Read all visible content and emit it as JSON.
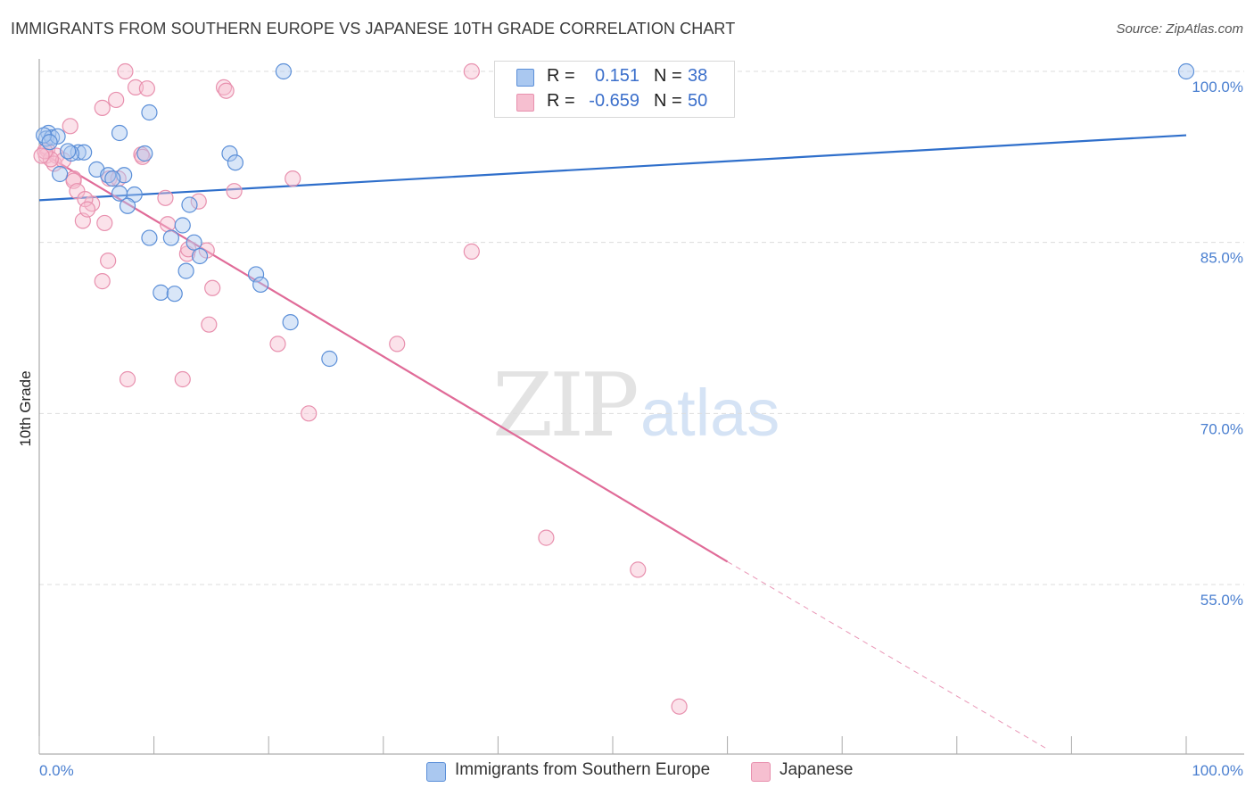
{
  "header": {
    "title": "IMMIGRANTS FROM SOUTHERN EUROPE VS JAPANESE 10TH GRADE CORRELATION CHART",
    "source": "Source: ZipAtlas.com"
  },
  "watermark": {
    "zip": "ZIP",
    "atlas": "atlas"
  },
  "legend": {
    "series1": {
      "r_label": "R =",
      "r_value": "0.151",
      "n_label": "N =",
      "n_value": "38"
    },
    "series2": {
      "r_label": "R =",
      "r_value": "-0.659",
      "n_label": "N =",
      "n_value": "50"
    }
  },
  "bottom_legend": {
    "series1": "Immigrants from Southern Europe",
    "series2": "Japanese"
  },
  "colors": {
    "blue_fill": "#aac8f0",
    "blue_stroke": "#5b8fd8",
    "blue_line": "#2f6fcb",
    "pink_fill": "#f6bfd0",
    "pink_stroke": "#e890ae",
    "pink_line": "#e06b98",
    "axis_label": "#4a7fd0",
    "grid": "#dddddd"
  },
  "chart_data": {
    "type": "scatter",
    "title": "IMMIGRANTS FROM SOUTHERN EUROPE VS JAPANESE 10TH GRADE CORRELATION CHART",
    "xlabel": "",
    "ylabel": "10th Grade",
    "xlim": [
      0,
      100
    ],
    "ylim": [
      40.5,
      101.5
    ],
    "x_tick_labels": [
      "0.0%",
      "100.0%"
    ],
    "y_ticks": [
      55,
      70,
      85,
      100
    ],
    "y_tick_labels": [
      "55.0%",
      "70.0%",
      "85.0%",
      "100.0%"
    ],
    "grid": true,
    "series": [
      {
        "name": "Immigrants from Southern Europe",
        "color": "#5b8fd8",
        "x": [
          21.3,
          100,
          0.8,
          0.6,
          1.1,
          1.6,
          3.4,
          3.9,
          2.8,
          9.6,
          7.0,
          9.2,
          16.6,
          17.1,
          5.0,
          6.0,
          7.4,
          6.4,
          7.0,
          8.3,
          7.7,
          13.1,
          12.5,
          9.6,
          11.5,
          13.5,
          14.0,
          12.8,
          10.6,
          11.8,
          18.9,
          19.3,
          21.9,
          25.3,
          0.4,
          0.9,
          2.5,
          1.8
        ],
        "y": [
          100,
          100,
          94.6,
          94.1,
          94.2,
          94.3,
          92.9,
          92.9,
          92.8,
          96.4,
          94.6,
          92.8,
          92.8,
          92.0,
          91.4,
          90.9,
          90.9,
          90.6,
          89.3,
          89.2,
          88.2,
          88.3,
          86.5,
          85.4,
          85.4,
          85.0,
          83.8,
          82.5,
          80.6,
          80.5,
          82.2,
          81.3,
          78.0,
          74.8,
          94.4,
          93.8,
          93.0,
          91.0
        ],
        "trendline": {
          "x": [
            0,
            100
          ],
          "y": [
            88.7,
            94.4
          ]
        }
      },
      {
        "name": "Japanese",
        "color": "#e890ae",
        "x": [
          7.5,
          37.7,
          16.1,
          16.3,
          8.4,
          9.4,
          6.7,
          5.5,
          2.7,
          0.7,
          0.6,
          1.5,
          1.3,
          2.1,
          3.0,
          8.9,
          9.0,
          6.1,
          6.9,
          11.0,
          13.9,
          17.0,
          22.1,
          3.0,
          3.3,
          4.6,
          4.0,
          3.8,
          4.2,
          5.7,
          11.2,
          12.9,
          14.6,
          13.0,
          15.1,
          6.0,
          5.5,
          20.8,
          23.5,
          7.7,
          12.5,
          37.7,
          44.2,
          52.2,
          55.8,
          31.2,
          14.8,
          1.0,
          0.5,
          0.2
        ],
        "y": [
          100,
          100,
          98.6,
          98.3,
          98.6,
          98.5,
          97.5,
          96.8,
          95.2,
          93.1,
          92.6,
          92.6,
          91.9,
          92.2,
          90.6,
          92.7,
          92.5,
          90.6,
          90.6,
          88.9,
          88.6,
          89.5,
          90.6,
          90.4,
          89.5,
          88.4,
          88.8,
          86.9,
          87.9,
          86.7,
          86.6,
          84.0,
          84.3,
          84.4,
          81.0,
          83.4,
          81.6,
          76.1,
          70.0,
          73.0,
          73.0,
          84.2,
          59.1,
          56.3,
          44.3,
          76.1,
          77.8,
          92.3,
          93.0,
          92.6
        ],
        "trendline": {
          "x": [
            0,
            60
          ],
          "y": [
            93.0,
            57.0
          ]
        },
        "trendline_dashed": {
          "x": [
            60,
            88
          ],
          "y": [
            57.0,
            40.5
          ]
        }
      }
    ]
  }
}
